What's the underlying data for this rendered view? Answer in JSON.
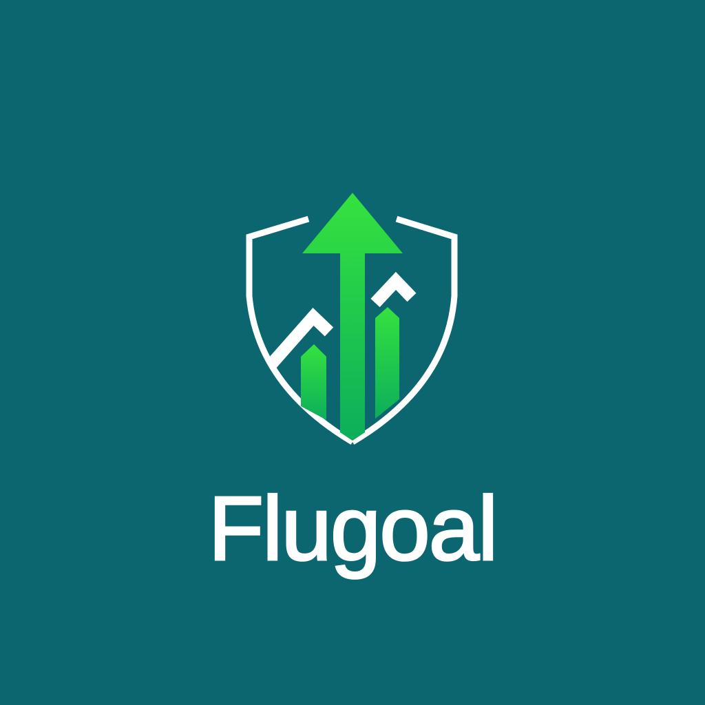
{
  "logo": {
    "wordmark": "Flugoal",
    "emblem_icon": "shield-growth-arrow-icon",
    "colors": {
      "background": "#0b6670",
      "shield_outline": "#ffffff",
      "arrow_top": "#33e03f",
      "arrow_bottom": "#0bb35a",
      "text": "#ffffff"
    }
  }
}
